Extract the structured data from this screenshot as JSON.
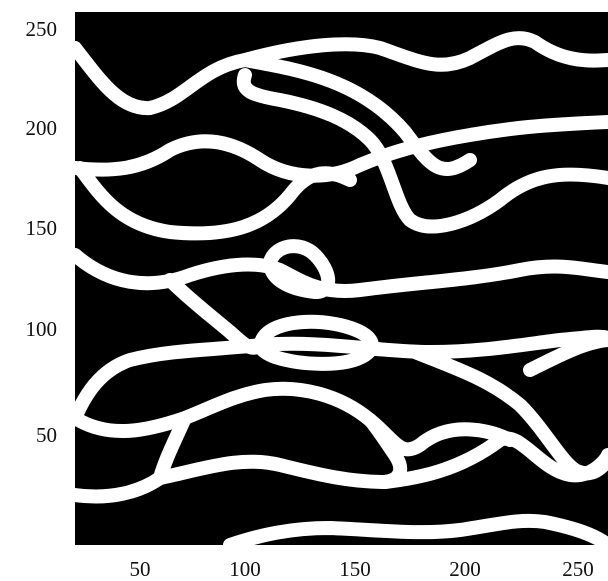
{
  "figure": {
    "type": "binary-image",
    "description": "white curving line network on black background",
    "colors": {
      "background": "#000000",
      "lines": "#ffffff",
      "axis_text": "#111111"
    },
    "x_range": [
      20,
      260
    ],
    "y_range": [
      0,
      260
    ],
    "x_ticks": [
      "50",
      "100",
      "150",
      "200",
      "250"
    ],
    "y_ticks": [
      "250",
      "200",
      "150",
      "100",
      "50"
    ]
  }
}
